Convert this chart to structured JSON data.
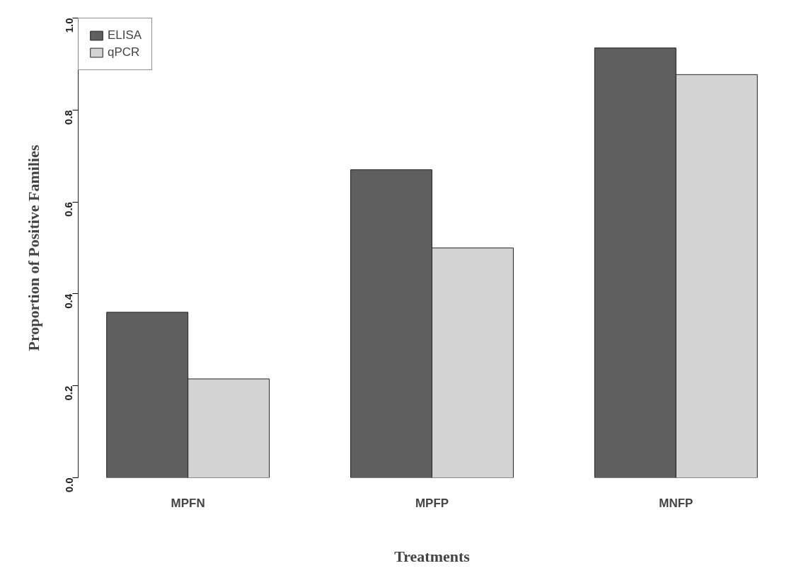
{
  "chart_data": {
    "type": "bar",
    "xlabel": "Treatments",
    "ylabel": "Proportion of Positive Families",
    "categories": [
      "MPFN",
      "MPFP",
      "MNFP"
    ],
    "series": [
      {
        "name": "ELISA",
        "color": "#5f5f5f",
        "values": [
          0.36,
          0.67,
          0.935
        ]
      },
      {
        "name": "qPCR",
        "color": "#d3d3d3",
        "values": [
          0.215,
          0.5,
          0.877
        ]
      }
    ],
    "ylim": [
      0,
      1
    ],
    "yticks": [
      {
        "value": 0,
        "label": "0.0"
      },
      0.2,
      0.4,
      0.6,
      0.8,
      {
        "value": 1,
        "label": "1.0"
      }
    ],
    "grid": false,
    "legend": "top left"
  }
}
